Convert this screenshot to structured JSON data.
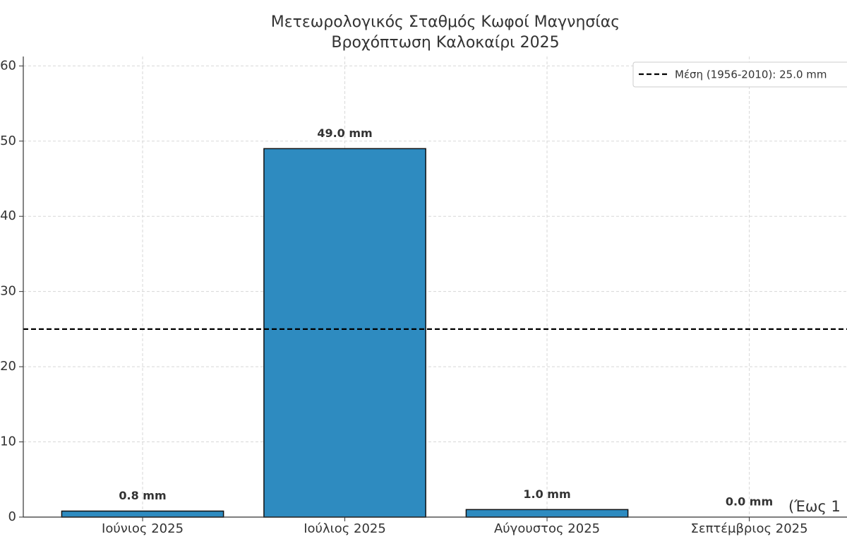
{
  "chart_data": {
    "type": "bar",
    "title": "Μετεωρολογικός Σταθμός Κωφοί Μαγνησίας",
    "subtitle": "Βροχόπτωση Καλοκαίρι 2025",
    "categories": [
      "Ιούνιος 2025",
      "Ιούλιος 2025",
      "Αύγουστος 2025",
      "Σεπτέμβριος 2025"
    ],
    "values": [
      0.8,
      49.0,
      1.0,
      0.0
    ],
    "value_labels": [
      "0.8 mm",
      "49.0 mm",
      "1.0 mm",
      "0.0 mm"
    ],
    "color": "#2e8bc0",
    "mean_line": {
      "name": "Μέση (1956-2010): 25.0 mm",
      "value": 25.0,
      "color": "#000000"
    },
    "annotation": "(Έως 1",
    "ylim": [
      0,
      61.25
    ],
    "yticks": [
      0,
      10,
      20,
      30,
      40,
      50,
      60
    ],
    "grid": true,
    "legend": "upper right"
  }
}
